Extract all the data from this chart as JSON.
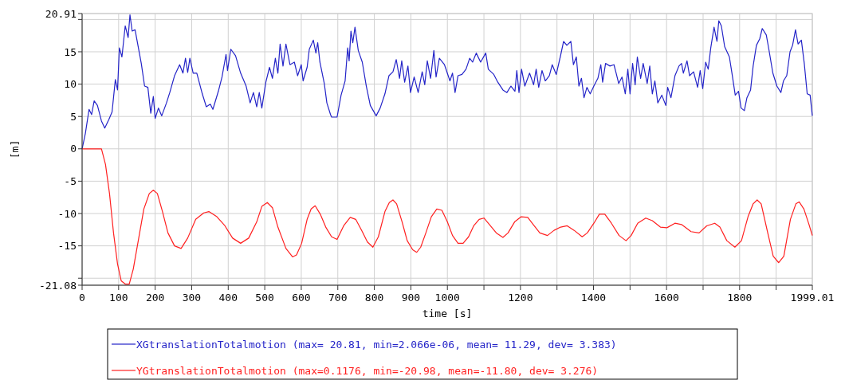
{
  "chart_data": {
    "type": "line",
    "xlabel": "time [s]",
    "ylabel": "[m]",
    "xlim": [
      0,
      1999.01
    ],
    "ylim": [
      -21.08,
      20.91
    ],
    "xticks": [
      0,
      100,
      200,
      300,
      400,
      500,
      600,
      700,
      800,
      900,
      1000,
      {
        "value": 1100,
        "label": null
      },
      1200,
      {
        "value": 1300,
        "label": null
      },
      1400,
      {
        "value": 1500,
        "label": null
      },
      1600,
      {
        "value": 1700,
        "label": null
      },
      1800,
      {
        "value": 1900,
        "label": null
      },
      1999.01
    ],
    "yticks": [
      -21.08,
      {
        "value": -20,
        "label": null
      },
      -15,
      -10,
      -5,
      0,
      5,
      10,
      15,
      {
        "value": 20,
        "label": null
      },
      20.91
    ],
    "grid": true,
    "legend": "bottom",
    "line_style": "solid",
    "marker": "none",
    "series": [
      {
        "name": "XGtranslationTotalmotion (max= 20.81, min=2.066e-06, mean= 11.29, dev= 3.383)",
        "color": "#2424c8",
        "x": [
          0,
          9,
          19,
          26,
          33,
          42,
          53,
          62,
          73,
          82,
          91,
          97,
          102,
          109,
          118,
          126,
          131,
          137,
          145,
          162,
          171,
          180,
          188,
          195,
          200,
          209,
          218,
          231,
          240,
          253,
          267,
          276,
          283,
          289,
          295,
          304,
          314,
          329,
          340,
          351,
          358,
          373,
          383,
          394,
          398,
          407,
          420,
          434,
          449,
          460,
          469,
          478,
          485,
          492,
          503,
          513,
          521,
          529,
          536,
          542,
          550,
          558,
          569,
          581,
          590,
          600,
          605,
          616,
          622,
          633,
          640,
          645,
          651,
          663,
          670,
          680,
          683,
          698,
          709,
          720,
          727,
          731,
          736,
          741,
          747,
          756,
          767,
          778,
          789,
          805,
          816,
          829,
          840,
          851,
          860,
          869,
          875,
          883,
          892,
          899,
          909,
          920,
          931,
          938,
          945,
          954,
          963,
          969,
          978,
          992,
          1007,
          1014,
          1021,
          1029,
          1040,
          1051,
          1061,
          1069,
          1079,
          1091,
          1105,
          1112,
          1127,
          1138,
          1152,
          1163,
          1174,
          1185,
          1190,
          1196,
          1203,
          1212,
          1225,
          1236,
          1243,
          1250,
          1259,
          1268,
          1279,
          1287,
          1298,
          1309,
          1318,
          1327,
          1338,
          1345,
          1353,
          1360,
          1367,
          1374,
          1382,
          1391,
          1401,
          1412,
          1420,
          1425,
          1433,
          1445,
          1456,
          1462,
          1469,
          1478,
          1487,
          1494,
          1500,
          1507,
          1514,
          1520,
          1529,
          1536,
          1547,
          1554,
          1561,
          1568,
          1576,
          1587,
          1598,
          1603,
          1612,
          1623,
          1634,
          1641,
          1646,
          1656,
          1663,
          1674,
          1685,
          1692,
          1699,
          1707,
          1714,
          1721,
          1730,
          1738,
          1743,
          1750,
          1759,
          1772,
          1779,
          1788,
          1797,
          1804,
          1813,
          1820,
          1830,
          1837,
          1846,
          1855,
          1862,
          1873,
          1880,
          1891,
          1902,
          1913,
          1920,
          1929,
          1938,
          1945,
          1953,
          1960,
          1969,
          1977,
          1985,
          1993,
          1999
        ],
        "values": [
          0,
          2.4,
          6.1,
          5.3,
          7.4,
          6.7,
          4.3,
          3.2,
          4.5,
          5.7,
          10.7,
          9.1,
          15.6,
          14.2,
          19.0,
          17.2,
          20.7,
          18.2,
          18.4,
          13.2,
          9.7,
          9.5,
          5.5,
          8.1,
          4.7,
          6.3,
          5.1,
          7.1,
          8.7,
          11.3,
          13.0,
          11.7,
          14.0,
          11.8,
          14.0,
          11.7,
          11.7,
          8.5,
          6.5,
          6.9,
          6.1,
          8.9,
          11.1,
          14.6,
          12.1,
          15.4,
          14.4,
          11.7,
          9.7,
          7.1,
          8.7,
          6.5,
          8.7,
          6.3,
          10.3,
          12.6,
          10.9,
          14.0,
          11.7,
          16.2,
          12.8,
          16.2,
          13.0,
          13.4,
          11.3,
          13.0,
          10.5,
          12.6,
          15.4,
          16.8,
          14.8,
          16.4,
          13.4,
          10.1,
          7.1,
          5.3,
          4.9,
          4.9,
          8.3,
          10.5,
          15.6,
          13.6,
          18.2,
          16.4,
          18.8,
          15.2,
          13.4,
          9.7,
          6.7,
          5.1,
          6.3,
          8.5,
          11.3,
          11.9,
          13.8,
          10.9,
          13.6,
          10.3,
          12.8,
          8.7,
          11.1,
          8.7,
          11.9,
          9.9,
          13.6,
          10.9,
          15.2,
          11.1,
          14.0,
          13.0,
          10.5,
          11.7,
          8.7,
          11.3,
          11.5,
          12.3,
          14.0,
          13.4,
          14.8,
          13.4,
          14.8,
          12.3,
          11.5,
          10.3,
          9.1,
          8.7,
          9.7,
          8.9,
          12.1,
          8.7,
          12.3,
          9.7,
          11.7,
          9.9,
          12.3,
          9.5,
          12.1,
          10.5,
          11.3,
          13.0,
          11.5,
          14.2,
          16.6,
          16.0,
          16.6,
          13.0,
          14.2,
          9.7,
          10.9,
          7.9,
          9.5,
          8.5,
          9.7,
          10.9,
          13.0,
          10.3,
          13.2,
          12.8,
          13.0,
          11.7,
          10.1,
          11.1,
          8.5,
          12.3,
          8.5,
          13.2,
          9.9,
          14.2,
          10.9,
          13.2,
          10.1,
          12.8,
          8.5,
          10.5,
          7.1,
          8.3,
          6.7,
          9.5,
          7.9,
          11.3,
          12.8,
          13.2,
          11.7,
          13.6,
          11.3,
          11.9,
          9.5,
          12.1,
          9.3,
          13.4,
          12.3,
          15.6,
          18.8,
          16.6,
          19.8,
          19.0,
          15.8,
          14.2,
          11.7,
          8.3,
          8.9,
          6.3,
          5.9,
          7.9,
          9.1,
          12.8,
          16.0,
          17.0,
          18.6,
          17.6,
          15.4,
          11.7,
          9.7,
          8.7,
          10.5,
          11.3,
          15.0,
          16.0,
          18.4,
          16.2,
          16.8,
          13.2,
          8.5,
          8.3,
          5.1
        ]
      },
      {
        "name": "YGtranslationTotalmotion (max=0.1176, min=-20.98, mean=-11.80, dev= 3.276)",
        "color": "#ff2020",
        "x": [
          0,
          53,
          64,
          75,
          86,
          97,
          107,
          118,
          129,
          140,
          155,
          169,
          184,
          195,
          206,
          220,
          235,
          253,
          271,
          289,
          311,
          333,
          347,
          369,
          391,
          412,
          434,
          456,
          478,
          492,
          507,
          521,
          536,
          558,
          576,
          587,
          601,
          616,
          627,
          638,
          652,
          667,
          683,
          698,
          716,
          734,
          749,
          767,
          781,
          796,
          811,
          829,
          841,
          851,
          861,
          876,
          890,
          905,
          916,
          927,
          941,
          956,
          971,
          985,
          1000,
          1014,
          1029,
          1043,
          1058,
          1072,
          1087,
          1100,
          1115,
          1134,
          1152,
          1166,
          1184,
          1202,
          1220,
          1235,
          1253,
          1274,
          1292,
          1310,
          1328,
          1347,
          1369,
          1383,
          1401,
          1416,
          1431,
          1449,
          1470,
          1489,
          1503,
          1521,
          1543,
          1561,
          1583,
          1601,
          1623,
          1641,
          1667,
          1689,
          1710,
          1732,
          1746,
          1765,
          1787,
          1805,
          1823,
          1837,
          1848,
          1859,
          1877,
          1892,
          1907,
          1921,
          1939,
          1954,
          1963,
          1976,
          1990,
          1999
        ],
        "values": [
          0,
          0,
          -2.4,
          -6.9,
          -13.0,
          -17.8,
          -20.4,
          -20.9,
          -20.9,
          -18.6,
          -13.8,
          -9.3,
          -6.9,
          -6.4,
          -6.9,
          -9.7,
          -13.0,
          -15.0,
          -15.4,
          -13.8,
          -10.9,
          -9.9,
          -9.7,
          -10.5,
          -11.9,
          -13.8,
          -14.6,
          -13.8,
          -11.3,
          -8.9,
          -8.3,
          -9.1,
          -12.1,
          -15.4,
          -16.7,
          -16.4,
          -14.6,
          -10.9,
          -9.3,
          -8.8,
          -10.1,
          -12.1,
          -13.6,
          -14.0,
          -11.9,
          -10.6,
          -10.9,
          -12.8,
          -14.4,
          -15.2,
          -13.6,
          -9.7,
          -8.3,
          -7.9,
          -8.5,
          -11.3,
          -14.2,
          -15.6,
          -16.0,
          -15.2,
          -13.0,
          -10.5,
          -9.3,
          -9.5,
          -11.3,
          -13.4,
          -14.6,
          -14.6,
          -13.6,
          -11.9,
          -10.9,
          -10.7,
          -11.7,
          -13.0,
          -13.7,
          -13.0,
          -11.3,
          -10.5,
          -10.6,
          -11.7,
          -13.0,
          -13.4,
          -12.6,
          -12.1,
          -11.9,
          -12.6,
          -13.6,
          -13.0,
          -11.5,
          -10.1,
          -10.1,
          -11.5,
          -13.4,
          -14.2,
          -13.4,
          -11.5,
          -10.7,
          -11.1,
          -12.1,
          -12.2,
          -11.5,
          -11.7,
          -12.8,
          -13.0,
          -11.9,
          -11.5,
          -12.1,
          -14.2,
          -15.2,
          -14.2,
          -10.5,
          -8.5,
          -7.9,
          -8.5,
          -13.0,
          -16.6,
          -17.6,
          -16.6,
          -10.9,
          -8.5,
          -8.2,
          -9.3,
          -11.7,
          -13.4
        ]
      }
    ]
  }
}
